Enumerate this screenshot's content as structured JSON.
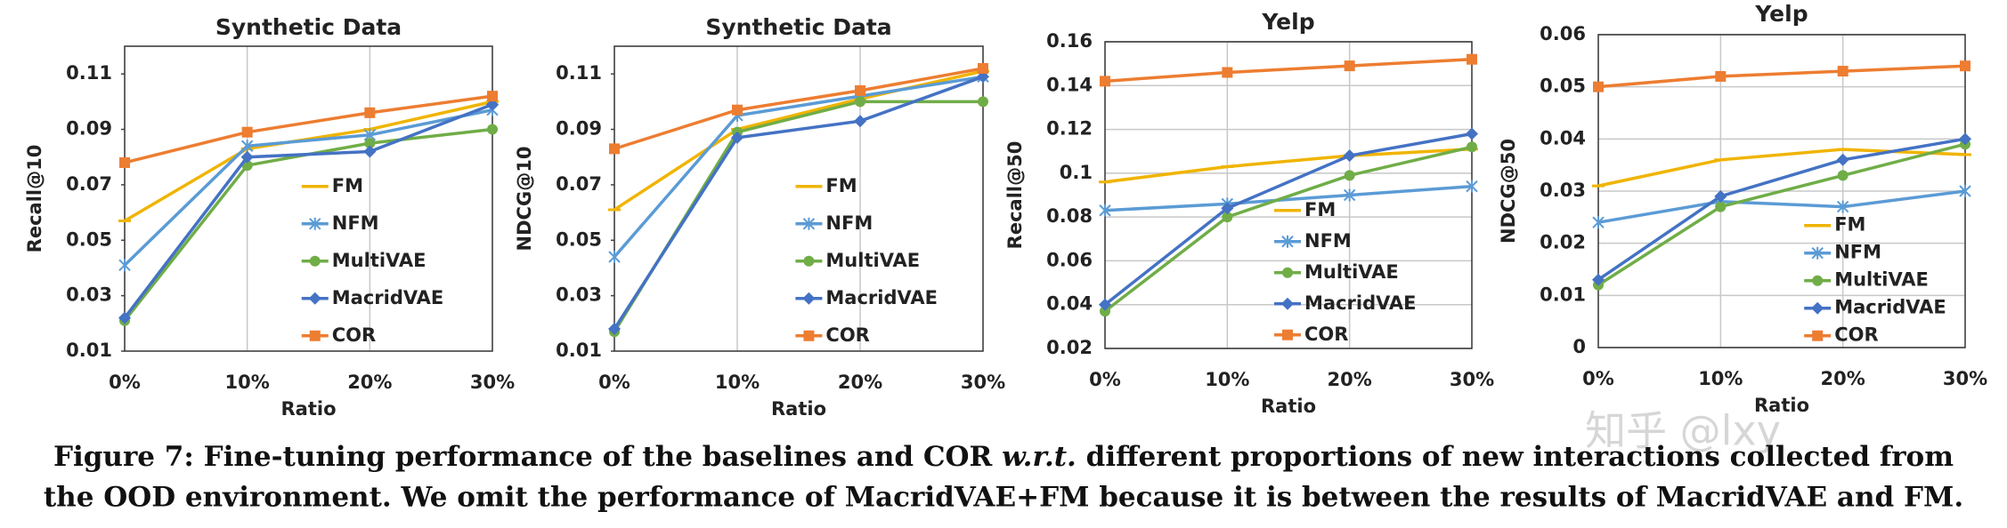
{
  "chart_data": [
    {
      "type": "line",
      "title": "Synthetic Data",
      "x_label": "Ratio",
      "y_label": "Recall@10",
      "categories": [
        "0%",
        "10%",
        "20%",
        "30%"
      ],
      "ylim": [
        0.01,
        0.12
      ],
      "yticks": [
        0.01,
        0.03,
        0.05,
        0.07,
        0.09,
        0.11
      ],
      "grid": "x",
      "series": [
        {
          "name": "FM",
          "color": "#f0b400",
          "values": [
            0.057,
            0.083,
            0.09,
            0.1
          ]
        },
        {
          "name": "NFM",
          "color": "#5b9bd5",
          "values": [
            0.041,
            0.084,
            0.088,
            0.097
          ]
        },
        {
          "name": "MultiVAE",
          "color": "#70ad47",
          "values": [
            0.021,
            0.077,
            0.085,
            0.09
          ]
        },
        {
          "name": "MacridVAE",
          "color": "#4472c4",
          "values": [
            0.022,
            0.08,
            0.082,
            0.099
          ]
        },
        {
          "name": "COR",
          "color": "#ed7d31",
          "values": [
            0.078,
            0.089,
            0.096,
            0.102
          ]
        }
      ]
    },
    {
      "type": "line",
      "title": "Synthetic Data",
      "x_label": "Ratio",
      "y_label": "NDCG@10",
      "categories": [
        "0%",
        "10%",
        "20%",
        "30%"
      ],
      "ylim": [
        0.01,
        0.12
      ],
      "yticks": [
        0.01,
        0.03,
        0.05,
        0.07,
        0.09,
        0.11
      ],
      "grid": "x",
      "series": [
        {
          "name": "FM",
          "color": "#f0b400",
          "values": [
            0.061,
            0.09,
            0.101,
            0.111
          ]
        },
        {
          "name": "NFM",
          "color": "#5b9bd5",
          "values": [
            0.044,
            0.095,
            0.102,
            0.109
          ]
        },
        {
          "name": "MultiVAE",
          "color": "#70ad47",
          "values": [
            0.017,
            0.089,
            0.1,
            0.1
          ]
        },
        {
          "name": "MacridVAE",
          "color": "#4472c4",
          "values": [
            0.018,
            0.087,
            0.093,
            0.109
          ]
        },
        {
          "name": "COR",
          "color": "#ed7d31",
          "values": [
            0.083,
            0.097,
            0.104,
            0.112
          ]
        }
      ]
    },
    {
      "type": "line",
      "title": "Yelp",
      "x_label": "Ratio",
      "y_label": "Recall@50",
      "categories": [
        "0%",
        "10%",
        "20%",
        "30%"
      ],
      "ylim": [
        0.02,
        0.16
      ],
      "yticks": [
        0.02,
        0.04,
        0.06,
        0.08,
        0.1,
        0.12,
        0.14,
        0.16
      ],
      "grid": "both",
      "series": [
        {
          "name": "FM",
          "color": "#f0b400",
          "values": [
            0.096,
            0.103,
            0.108,
            0.111
          ]
        },
        {
          "name": "NFM",
          "color": "#5b9bd5",
          "values": [
            0.083,
            0.086,
            0.09,
            0.094
          ]
        },
        {
          "name": "MultiVAE",
          "color": "#70ad47",
          "values": [
            0.037,
            0.08,
            0.099,
            0.112
          ]
        },
        {
          "name": "MacridVAE",
          "color": "#4472c4",
          "values": [
            0.04,
            0.084,
            0.108,
            0.118
          ]
        },
        {
          "name": "COR",
          "color": "#ed7d31",
          "values": [
            0.142,
            0.146,
            0.149,
            0.152
          ]
        }
      ]
    },
    {
      "type": "line",
      "title": "Yelp",
      "x_label": "Ratio",
      "y_label": "NDCG@50",
      "categories": [
        "0%",
        "10%",
        "20%",
        "30%"
      ],
      "ylim": [
        0,
        0.06
      ],
      "yticks": [
        0,
        0.01,
        0.02,
        0.03,
        0.04,
        0.05,
        0.06
      ],
      "grid": "both",
      "series": [
        {
          "name": "FM",
          "color": "#f0b400",
          "values": [
            0.031,
            0.036,
            0.038,
            0.037
          ]
        },
        {
          "name": "NFM",
          "color": "#5b9bd5",
          "values": [
            0.024,
            0.028,
            0.027,
            0.03
          ]
        },
        {
          "name": "MultiVAE",
          "color": "#70ad47",
          "values": [
            0.012,
            0.027,
            0.033,
            0.039
          ]
        },
        {
          "name": "MacridVAE",
          "color": "#4472c4",
          "values": [
            0.013,
            0.029,
            0.036,
            0.04
          ]
        },
        {
          "name": "COR",
          "color": "#ed7d31",
          "values": [
            0.05,
            0.052,
            0.053,
            0.054
          ]
        }
      ]
    }
  ],
  "caption": {
    "line1": [
      "Figure 7: Fine-tuning performance of the baselines and COR ",
      "w.r.t.",
      " different proportions of new interactions collected from"
    ],
    "line2": "the OOD environment. We omit the performance of MacridVAE+FM because it is between the results of MacridVAE and FM."
  },
  "watermark": "知乎 @lxy"
}
